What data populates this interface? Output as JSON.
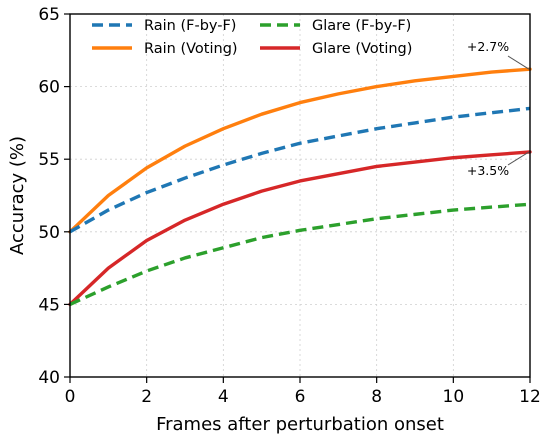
{
  "chart_data": {
    "type": "line",
    "title": "",
    "xlabel": "Frames after perturbation onset",
    "ylabel": "Accuracy (%)",
    "xlim": [
      0,
      12
    ],
    "ylim": [
      40,
      65
    ],
    "x_ticks": [
      "0",
      "2",
      "4",
      "6",
      "8",
      "10",
      "12"
    ],
    "y_ticks": [
      "40",
      "45",
      "50",
      "55",
      "60",
      "65"
    ],
    "grid": true,
    "legend_position": "top-left",
    "x": [
      0,
      1,
      2,
      3,
      4,
      5,
      6,
      7,
      8,
      9,
      10,
      11,
      12
    ],
    "series": [
      {
        "name": "Rain (F-by-F)",
        "color": "#1f77b4",
        "style": "dashed",
        "values": [
          50.0,
          51.5,
          52.7,
          53.7,
          54.6,
          55.4,
          56.1,
          56.6,
          57.1,
          57.5,
          57.9,
          58.2,
          58.5
        ]
      },
      {
        "name": "Glare (F-by-F)",
        "color": "#2ca02c",
        "style": "dashed",
        "values": [
          45.0,
          46.2,
          47.3,
          48.2,
          48.9,
          49.6,
          50.1,
          50.5,
          50.9,
          51.2,
          51.5,
          51.7,
          51.9
        ]
      },
      {
        "name": "Rain (Voting)",
        "color": "#ff7f0e",
        "style": "solid",
        "values": [
          50.0,
          52.5,
          54.4,
          55.9,
          57.1,
          58.1,
          58.9,
          59.5,
          60.0,
          60.4,
          60.7,
          61.0,
          61.2
        ]
      },
      {
        "name": "Glare (Voting)",
        "color": "#d62728",
        "style": "solid",
        "values": [
          45.0,
          47.5,
          49.4,
          50.8,
          51.9,
          52.8,
          53.5,
          54.0,
          54.5,
          54.8,
          55.1,
          55.3,
          55.5
        ]
      }
    ],
    "legend_order": [
      0,
      1,
      2,
      3
    ],
    "annotations": [
      {
        "text": "+2.7%",
        "x": 12,
        "y": 61.2
      },
      {
        "text": "+3.5%",
        "x": 12,
        "y": 55.5
      }
    ]
  }
}
